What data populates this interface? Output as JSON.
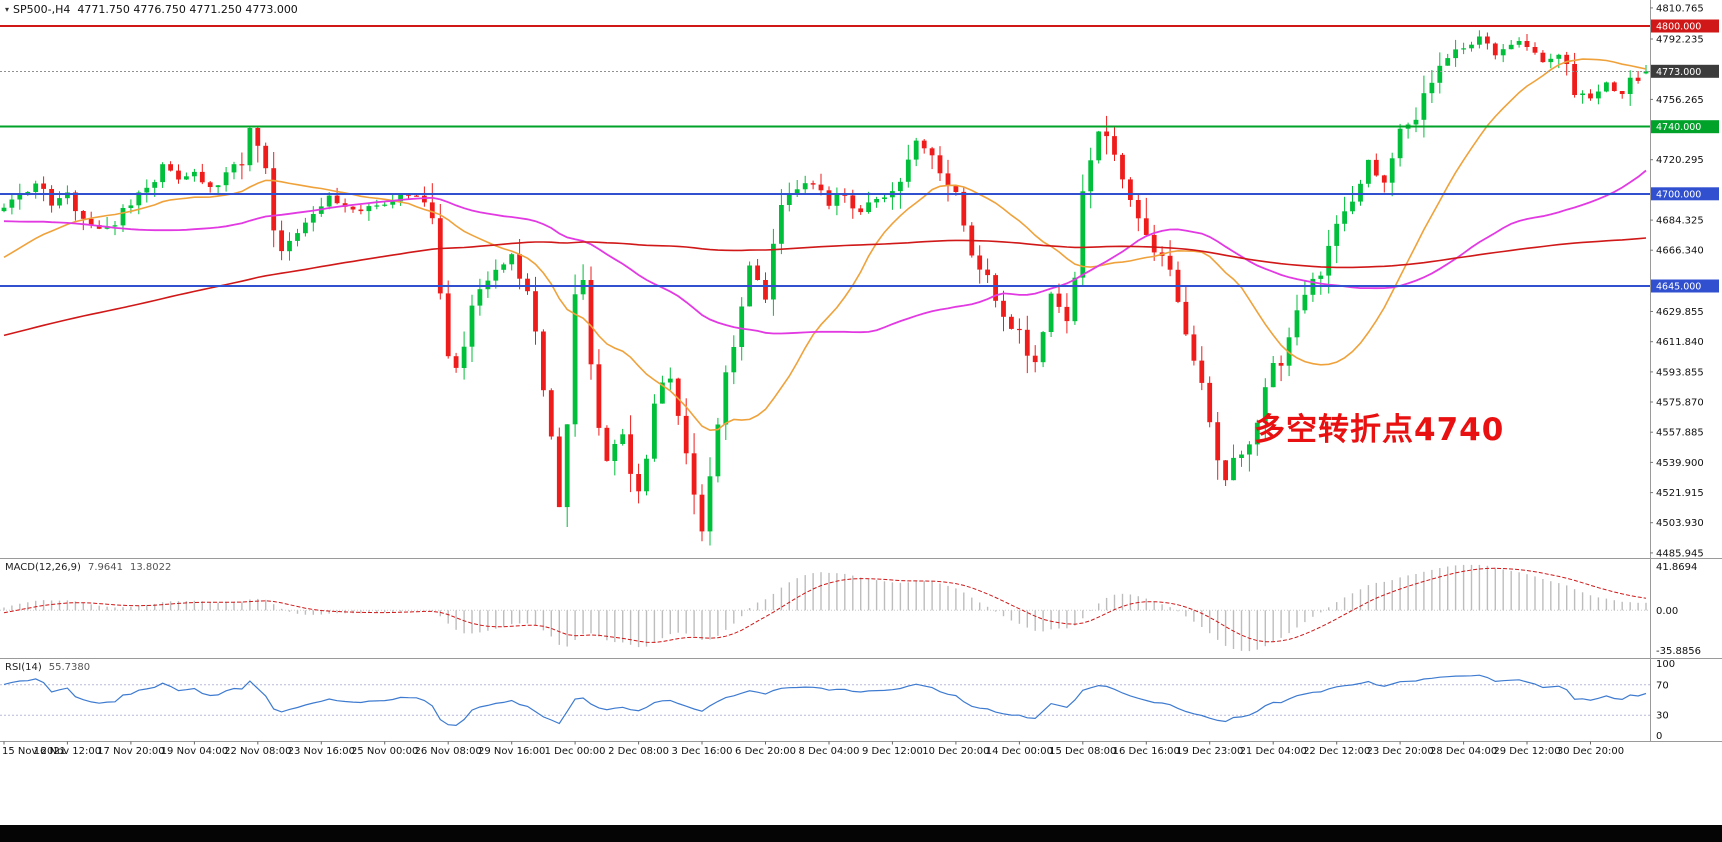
{
  "header": {
    "symbol_period": "SP500-,H4",
    "ohlc": "4771.750 4776.750 4771.250 4773.000"
  },
  "chart_data": {
    "type": "candlestick",
    "symbol": "SP500-",
    "timeframe": "H4",
    "last_ohlc": {
      "open": 4771.75,
      "high": 4776.75,
      "low": 4771.25,
      "close": 4773.0
    },
    "price_min": 4483.5,
    "price_max": 4815.5,
    "bar_count": 208,
    "label_every_bars": 8,
    "x_labels": [
      "15 Nov 2021",
      "16 Nov 12:00",
      "17 Nov 20:00",
      "19 Nov 04:00",
      "22 Nov 08:00",
      "23 Nov 16:00",
      "25 Nov 00:00",
      "26 Nov 08:00",
      "29 Nov 16:00",
      "1 Dec 00:00",
      "2 Dec 08:00",
      "3 Dec 16:00",
      "6 Dec 20:00",
      "8 Dec 04:00",
      "9 Dec 12:00",
      "10 Dec 20:00",
      "14 Dec 00:00",
      "15 Dec 08:00",
      "16 Dec 16:00",
      "19 Dec 23:00",
      "21 Dec 04:00",
      "22 Dec 12:00",
      "23 Dec 20:00",
      "28 Dec 04:00",
      "29 Dec 12:00",
      "30 Dec 20:00"
    ],
    "y_ticks": [
      4810.765,
      4792.235,
      4756.265,
      4720.295,
      4684.325,
      4666.34,
      4629.855,
      4611.84,
      4593.855,
      4575.87,
      4557.885,
      4539.9,
      4521.915,
      4503.93,
      4485.945
    ],
    "badges": [
      {
        "price": 4800.0,
        "label": "4800.000",
        "bg": "#d01818"
      },
      {
        "price": 4773.0,
        "label": "4773.000",
        "bg": "#3c3c3c"
      },
      {
        "price": 4740.0,
        "label": "4740.000",
        "bg": "#00a22a"
      },
      {
        "price": 4700.0,
        "label": "4700.000",
        "bg": "#3050d0"
      },
      {
        "price": 4645.0,
        "label": "4645.000",
        "bg": "#3050d0"
      }
    ],
    "hlines": [
      {
        "price": 4800,
        "color": "#d01818",
        "w": 2,
        "dash": ""
      },
      {
        "price": 4740,
        "color": "#00a22a",
        "w": 2,
        "dash": ""
      },
      {
        "price": 4700,
        "color": "#3050d0",
        "w": 2,
        "dash": ""
      },
      {
        "price": 4645,
        "color": "#3050d0",
        "w": 2,
        "dash": ""
      },
      {
        "price": 4773,
        "color": "#909090",
        "w": 1,
        "dash": "2 2"
      }
    ],
    "candle_up": "#00bf3a",
    "candle_down": "#ef1c1c",
    "moving_averages": [
      {
        "period": 21,
        "color": "#efa23b",
        "width": 1.6
      },
      {
        "period": 55,
        "color": "#e23ae2",
        "width": 1.8
      },
      {
        "period": 200,
        "color": "#d01818",
        "width": 1.6
      }
    ],
    "price_path_anchors": [
      [
        0,
        4690
      ],
      [
        2,
        4700
      ],
      [
        4,
        4706
      ],
      [
        6,
        4694
      ],
      [
        8,
        4699
      ],
      [
        10,
        4688
      ],
      [
        12,
        4678
      ],
      [
        14,
        4684
      ],
      [
        16,
        4696
      ],
      [
        18,
        4705
      ],
      [
        20,
        4716
      ],
      [
        22,
        4710
      ],
      [
        24,
        4713
      ],
      [
        26,
        4705
      ],
      [
        28,
        4710
      ],
      [
        30,
        4722
      ],
      [
        31,
        4737
      ],
      [
        32,
        4730
      ],
      [
        33,
        4718
      ],
      [
        34,
        4680
      ],
      [
        35,
        4663
      ],
      [
        37,
        4675
      ],
      [
        39,
        4688
      ],
      [
        41,
        4698
      ],
      [
        43,
        4692
      ],
      [
        45,
        4688
      ],
      [
        47,
        4695
      ],
      [
        49,
        4694
      ],
      [
        51,
        4700
      ],
      [
        53,
        4695
      ],
      [
        54,
        4685
      ],
      [
        55,
        4640
      ],
      [
        56,
        4608
      ],
      [
        57,
        4596
      ],
      [
        58,
        4605
      ],
      [
        59,
        4630
      ],
      [
        60,
        4642
      ],
      [
        62,
        4652
      ],
      [
        64,
        4662
      ],
      [
        65,
        4655
      ],
      [
        66,
        4638
      ],
      [
        67,
        4620
      ],
      [
        68,
        4585
      ],
      [
        69,
        4550
      ],
      [
        70,
        4515
      ],
      [
        71,
        4560
      ],
      [
        72,
        4640
      ],
      [
        73,
        4650
      ],
      [
        74,
        4600
      ],
      [
        75,
        4560
      ],
      [
        76,
        4540
      ],
      [
        77,
        4552
      ],
      [
        78,
        4560
      ],
      [
        79,
        4535
      ],
      [
        80,
        4522
      ],
      [
        81,
        4548
      ],
      [
        82,
        4576
      ],
      [
        83,
        4588
      ],
      [
        84,
        4595
      ],
      [
        85,
        4570
      ],
      [
        86,
        4542
      ],
      [
        87,
        4518
      ],
      [
        88,
        4500
      ],
      [
        89,
        4528
      ],
      [
        90,
        4560
      ],
      [
        91,
        4590
      ],
      [
        92,
        4614
      ],
      [
        93,
        4636
      ],
      [
        94,
        4654
      ],
      [
        95,
        4648
      ],
      [
        96,
        4642
      ],
      [
        97,
        4668
      ],
      [
        98,
        4690
      ],
      [
        99,
        4697
      ],
      [
        100,
        4700
      ],
      [
        101,
        4704
      ],
      [
        102,
        4706
      ],
      [
        103,
        4698
      ],
      [
        104,
        4692
      ],
      [
        105,
        4698
      ],
      [
        106,
        4701
      ],
      [
        107,
        4694
      ],
      [
        108,
        4688
      ],
      [
        109,
        4692
      ],
      [
        110,
        4696
      ],
      [
        112,
        4700
      ],
      [
        113,
        4712
      ],
      [
        114,
        4725
      ],
      [
        115,
        4731
      ],
      [
        116,
        4729
      ],
      [
        117,
        4722
      ],
      [
        118,
        4716
      ],
      [
        119,
        4708
      ],
      [
        120,
        4699
      ],
      [
        121,
        4680
      ],
      [
        122,
        4664
      ],
      [
        123,
        4655
      ],
      [
        124,
        4650
      ],
      [
        125,
        4638
      ],
      [
        126,
        4626
      ],
      [
        127,
        4622
      ],
      [
        128,
        4619
      ],
      [
        129,
        4608
      ],
      [
        130,
        4600
      ],
      [
        131,
        4618
      ],
      [
        132,
        4638
      ],
      [
        133,
        4630
      ],
      [
        134,
        4624
      ],
      [
        135,
        4648
      ],
      [
        136,
        4696
      ],
      [
        137,
        4720
      ],
      [
        138,
        4740
      ],
      [
        139,
        4730
      ],
      [
        140,
        4720
      ],
      [
        141,
        4710
      ],
      [
        142,
        4700
      ],
      [
        143,
        4685
      ],
      [
        144,
        4670
      ],
      [
        145,
        4662
      ],
      [
        146,
        4660
      ],
      [
        147,
        4650
      ],
      [
        148,
        4640
      ],
      [
        149,
        4622
      ],
      [
        150,
        4604
      ],
      [
        151,
        4582
      ],
      [
        152,
        4558
      ],
      [
        153,
        4540
      ],
      [
        154,
        4528
      ],
      [
        155,
        4538
      ],
      [
        156,
        4545
      ],
      [
        157,
        4556
      ],
      [
        158,
        4568
      ],
      [
        159,
        4580
      ],
      [
        160,
        4594
      ],
      [
        161,
        4602
      ],
      [
        162,
        4610
      ],
      [
        163,
        4628
      ],
      [
        164,
        4645
      ],
      [
        165,
        4652
      ],
      [
        166,
        4656
      ],
      [
        167,
        4668
      ],
      [
        168,
        4680
      ],
      [
        169,
        4690
      ],
      [
        170,
        4700
      ],
      [
        171,
        4710
      ],
      [
        172,
        4719
      ],
      [
        173,
        4712
      ],
      [
        174,
        4710
      ],
      [
        175,
        4724
      ],
      [
        176,
        4738
      ],
      [
        177,
        4742
      ],
      [
        178,
        4746
      ],
      [
        179,
        4758
      ],
      [
        180,
        4768
      ],
      [
        181,
        4775
      ],
      [
        182,
        4780
      ],
      [
        183,
        4784
      ],
      [
        184,
        4788
      ],
      [
        185,
        4790
      ],
      [
        186,
        4792
      ],
      [
        187,
        4788
      ],
      [
        188,
        4784
      ],
      [
        189,
        4787
      ],
      [
        190,
        4790
      ],
      [
        191,
        4789
      ],
      [
        192,
        4787
      ],
      [
        193,
        4783
      ],
      [
        194,
        4779
      ],
      [
        195,
        4782
      ],
      [
        196,
        4784
      ],
      [
        197,
        4772
      ],
      [
        198,
        4762
      ],
      [
        199,
        4758
      ],
      [
        200,
        4757
      ],
      [
        201,
        4761
      ],
      [
        202,
        4765
      ],
      [
        203,
        4762
      ],
      [
        204,
        4760
      ],
      [
        205,
        4766
      ],
      [
        206,
        4770
      ],
      [
        207,
        4773
      ]
    ],
    "prehistory_anchors": [
      [
        0,
        4420
      ],
      [
        150,
        4695
      ],
      [
        185,
        4715
      ],
      [
        200,
        4640
      ],
      [
        219,
        4680
      ]
    ],
    "prehistory_bars": 220,
    "noise_seed": 7,
    "macd": {
      "label": "MACD(12,26,9)",
      "value_main": "7.9641",
      "value_signal": "13.8022",
      "fast": 12,
      "slow": 26,
      "signal": 9,
      "axis_top": "41.8694",
      "axis_zero": "0.00",
      "axis_bottom": "-35.8856",
      "hist_color": "#bdbdbd",
      "signal_color": "#d01818"
    },
    "rsi": {
      "label": "RSI(14)",
      "value": "55.7380",
      "period": 14,
      "levels": [
        "100",
        "70",
        "30",
        "0"
      ],
      "level_values": [
        100,
        70,
        30,
        0
      ],
      "line_color": "#3e7bd0"
    },
    "annotation": {
      "text": "多空转折点4740",
      "color": "#e81010"
    }
  }
}
